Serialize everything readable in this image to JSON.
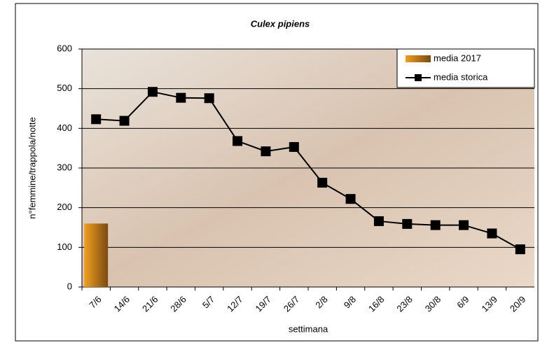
{
  "chart_data": {
    "type": "combo",
    "title": "Culex pipiens",
    "x_label": "settimana",
    "y_label": "n°femmine/trappola/notte",
    "categories": [
      "7/6",
      "14/6",
      "21/6",
      "28/6",
      "5/7",
      "12/7",
      "19/7",
      "26/7",
      "2/8",
      "9/8",
      "16/8",
      "23/8",
      "30/8",
      "6/9",
      "13/9",
      "20/9"
    ],
    "series": [
      {
        "name": "media 2017",
        "kind": "bar",
        "color": "#d98c10",
        "values": [
          160,
          null,
          null,
          null,
          null,
          null,
          null,
          null,
          null,
          null,
          null,
          null,
          null,
          null,
          null,
          null
        ]
      },
      {
        "name": "media storica",
        "kind": "line",
        "color": "#000000",
        "values": [
          423,
          419,
          492,
          477,
          476,
          368,
          342,
          353,
          263,
          222,
          166,
          159,
          156,
          156,
          135,
          95
        ]
      }
    ],
    "ylim": [
      0,
      600
    ],
    "yticks": [
      0,
      100,
      200,
      300,
      400,
      500,
      600
    ],
    "grid": true,
    "legend": "top-right"
  }
}
